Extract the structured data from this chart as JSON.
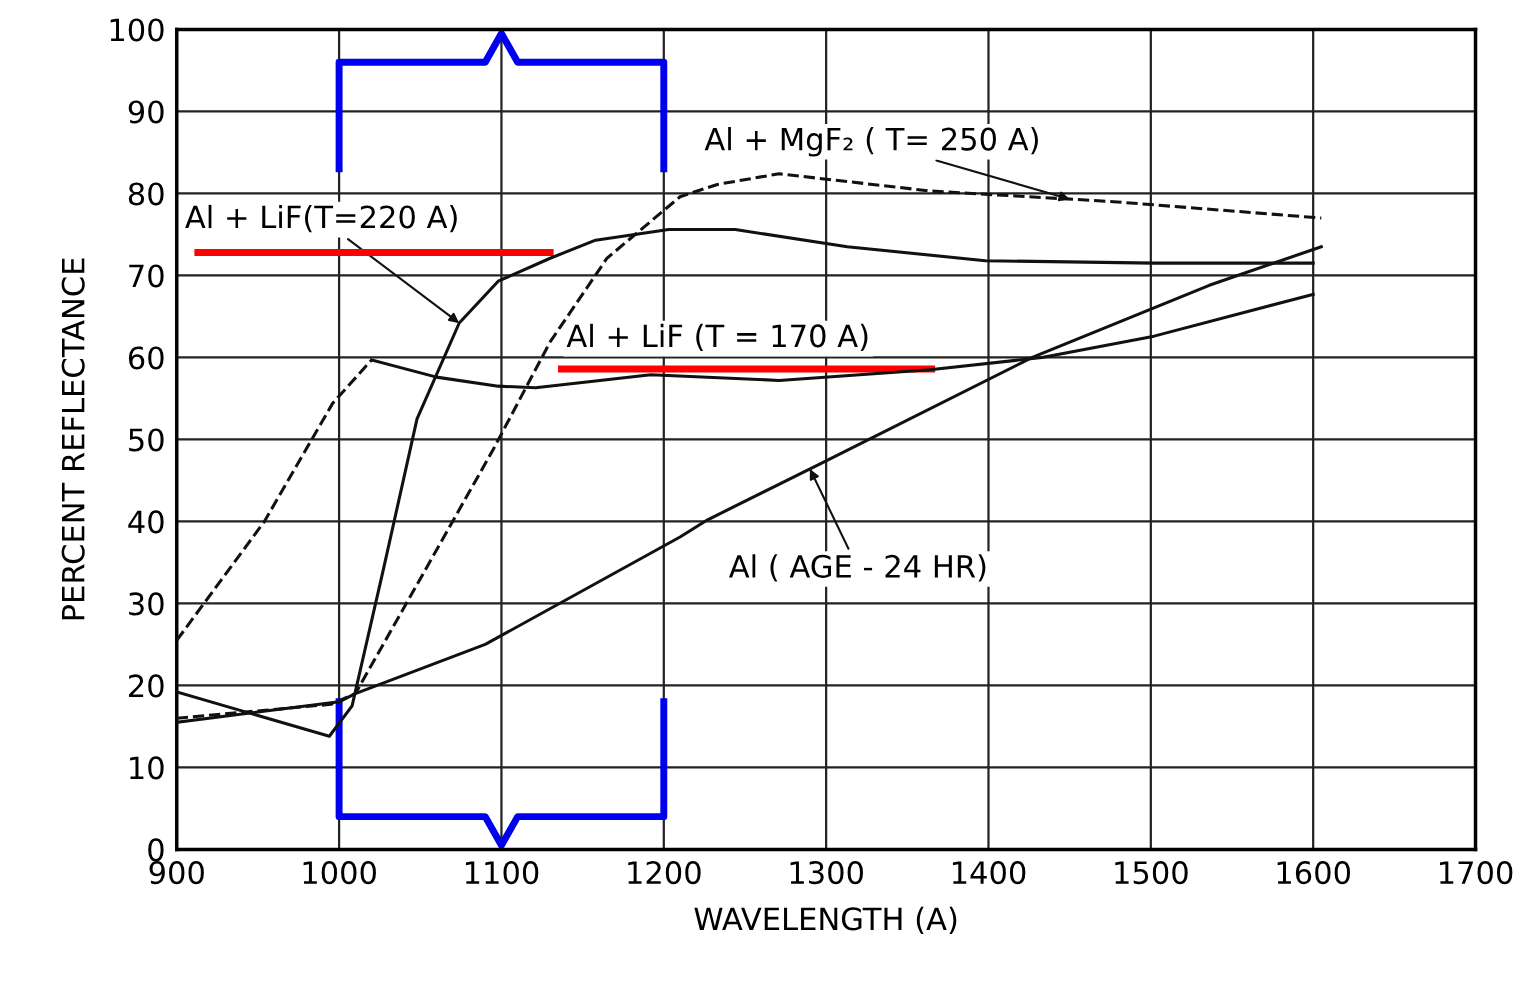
{
  "chart_data": {
    "type": "line",
    "xlabel": "WAVELENGTH (A)",
    "ylabel": "PERCENT REFLECTANCE",
    "xlim": [
      900,
      1700
    ],
    "ylim": [
      0,
      100
    ],
    "xticks": [
      900,
      1000,
      1100,
      1200,
      1300,
      1400,
      1500,
      1600,
      1700
    ],
    "yticks": [
      0,
      10,
      20,
      30,
      40,
      50,
      60,
      70,
      80,
      90,
      100
    ],
    "grid": true,
    "marker": "none",
    "series": [
      {
        "color": "#111111",
        "line_style": "dashed",
        "x": [
          900,
          954,
          996,
          1020
        ],
        "values": [
          25.5,
          40,
          54.4,
          59.7
        ]
      },
      {
        "color": "#111111",
        "line_style": "solid",
        "x": [
          1020,
          1060,
          1098,
          1121,
          1192,
          1271,
          1364,
          1433,
          1502,
          1600
        ],
        "values": [
          59.7,
          57.6,
          56.5,
          56.3,
          57.9,
          57.2,
          58.5,
          60,
          62.6,
          67.7
        ]
      },
      {
        "color": "#111111",
        "line_style": "solid",
        "x": [
          900,
          994,
          1008,
          1027,
          1048,
          1074,
          1098,
          1130,
          1158,
          1203,
          1244,
          1313,
          1398,
          1502,
          1600
        ],
        "values": [
          19.2,
          13.8,
          17.5,
          33.9,
          52.5,
          64.2,
          69.3,
          72.1,
          74.3,
          75.6,
          75.6,
          73.5,
          71.8,
          71.5,
          71.5
        ]
      },
      {
        "color": "#111111",
        "line_style": "dashed",
        "x": [
          900,
          995,
          1010,
          1046,
          1095,
          1130,
          1165,
          1210,
          1233,
          1271,
          1364,
          1477,
          1605
        ],
        "values": [
          16,
          17.7,
          19,
          31.6,
          48.8,
          61.9,
          72.1,
          79.6,
          81.1,
          82.4,
          80.3,
          79,
          77
        ]
      },
      {
        "color": "#111111",
        "line_style": "solid",
        "x": [
          900,
          1000,
          1010,
          1090,
          1210,
          1227,
          1296,
          1427,
          1536,
          1605
        ],
        "values": [
          15.5,
          18,
          19,
          25,
          38.1,
          40.2,
          47,
          60,
          68.8,
          73.5
        ]
      }
    ],
    "annotations": [
      {
        "text": "Al + LiF(T=220 A)",
        "x": 1074,
        "y": 64.2
      },
      "Al + LiF (T = 170 A)",
      {
        "text": "Al + MgF₂ ( T= 250 A)",
        "x": 1450,
        "y": 79.3
      },
      {
        "text": "Al ( AGE - 24 HR)",
        "x": 1290,
        "y": 46.4
      }
    ]
  }
}
